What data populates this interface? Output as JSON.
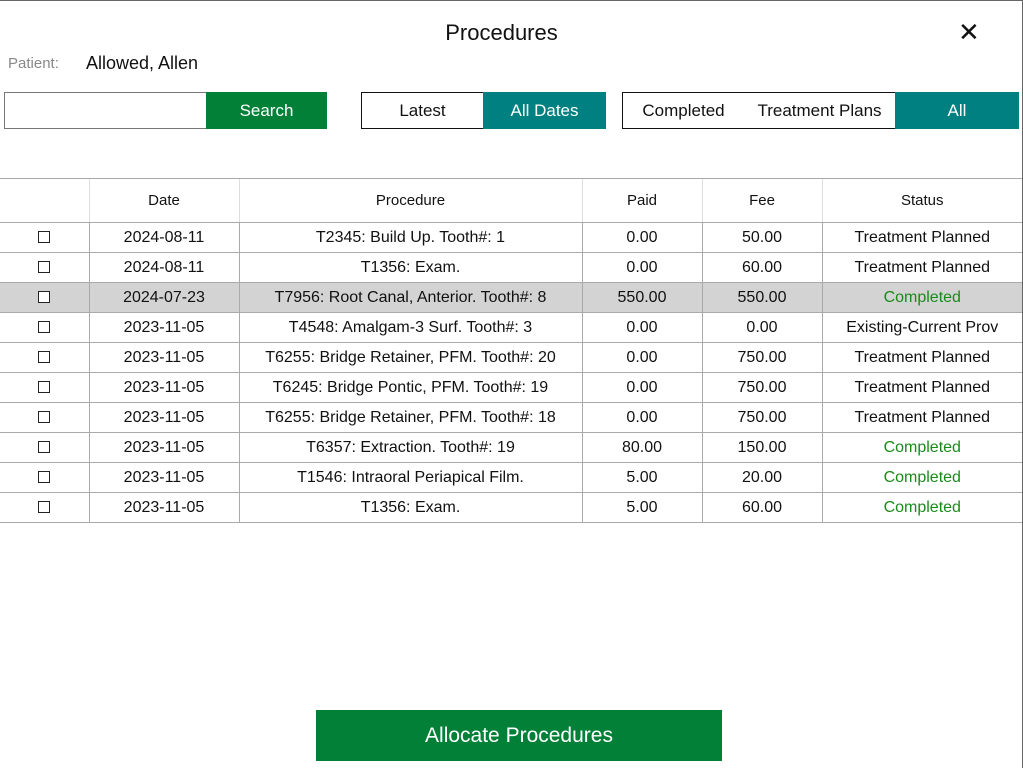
{
  "title": "Procedures",
  "patient": {
    "label": "Patient:",
    "name": "Allowed, Allen"
  },
  "search": {
    "value": "",
    "placeholder": "",
    "button": "Search"
  },
  "date_filter": {
    "latest": "Latest",
    "all_dates": "All Dates",
    "selected": "All Dates"
  },
  "status_filter": {
    "completed": "Completed",
    "treatment_plans": "Treatment Plans",
    "all": "All",
    "selected": "All"
  },
  "table": {
    "headers": [
      "",
      "Date",
      "Procedure",
      "Paid",
      "Fee",
      "Status"
    ],
    "rows": [
      {
        "date": "2024-08-11",
        "procedure": "T2345: Build Up. Tooth#: 1",
        "paid": "0.00",
        "fee": "50.00",
        "status": "Treatment Planned"
      },
      {
        "date": "2024-08-11",
        "procedure": "T1356: Exam.",
        "paid": "0.00",
        "fee": "60.00",
        "status": "Treatment Planned"
      },
      {
        "date": "2024-07-23",
        "procedure": "T7956: Root Canal, Anterior. Tooth#: 8",
        "paid": "550.00",
        "fee": "550.00",
        "status": "Completed",
        "highlighted": true
      },
      {
        "date": "2023-11-05",
        "procedure": "T4548: Amalgam-3 Surf. Tooth#: 3",
        "paid": "0.00",
        "fee": "0.00",
        "status": "Existing-Current Prov"
      },
      {
        "date": "2023-11-05",
        "procedure": "T6255: Bridge Retainer, PFM. Tooth#: 20",
        "paid": "0.00",
        "fee": "750.00",
        "status": "Treatment Planned"
      },
      {
        "date": "2023-11-05",
        "procedure": "T6245: Bridge Pontic, PFM. Tooth#: 19",
        "paid": "0.00",
        "fee": "750.00",
        "status": "Treatment Planned"
      },
      {
        "date": "2023-11-05",
        "procedure": "T6255: Bridge Retainer, PFM. Tooth#: 18",
        "paid": "0.00",
        "fee": "750.00",
        "status": "Treatment Planned"
      },
      {
        "date": "2023-11-05",
        "procedure": "T6357: Extraction. Tooth#: 19",
        "paid": "80.00",
        "fee": "150.00",
        "status": "Completed"
      },
      {
        "date": "2023-11-05",
        "procedure": "T1546: Intraoral Periapical Film.",
        "paid": "5.00",
        "fee": "20.00",
        "status": "Completed"
      },
      {
        "date": "2023-11-05",
        "procedure": "T1356: Exam.",
        "paid": "5.00",
        "fee": "60.00",
        "status": "Completed"
      }
    ]
  },
  "allocate_button": "Allocate Procedures",
  "colors": {
    "green": "#028038",
    "teal": "#008080",
    "completed_text": "#1a8a1a",
    "highlight_row": "#d3d3d3"
  }
}
